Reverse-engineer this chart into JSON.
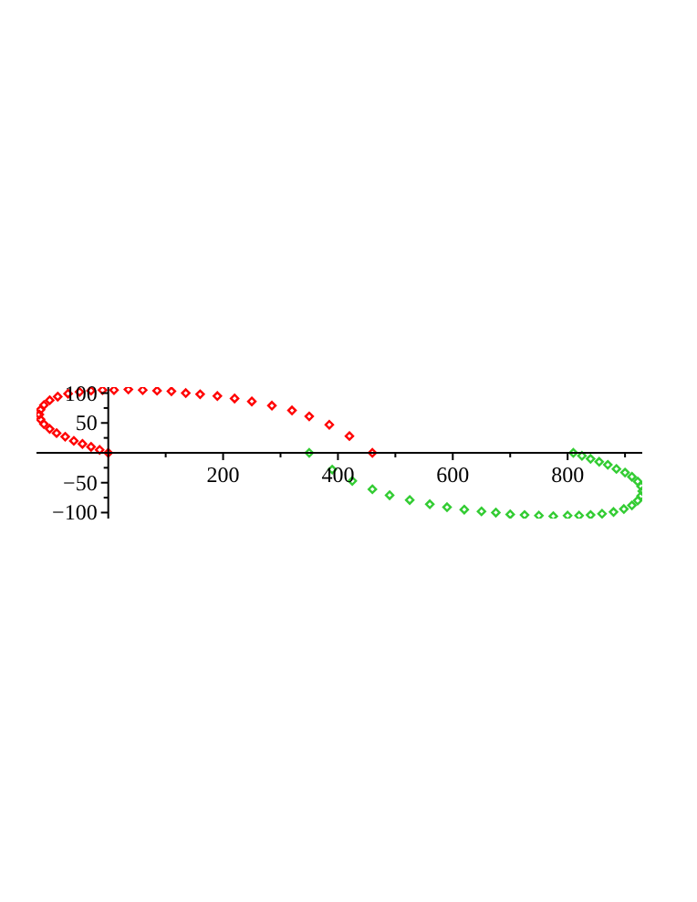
{
  "chart_data": {
    "type": "scatter",
    "marker": "diamond",
    "grid": false,
    "legend": false,
    "xlim": [
      -125,
      930
    ],
    "ylim": [
      -110,
      110
    ],
    "xticks": [
      {
        "value": 100,
        "label": null
      },
      200,
      {
        "value": 300,
        "label": null
      },
      400,
      {
        "value": 500,
        "label": null
      },
      600,
      {
        "value": 700,
        "label": null
      },
      800,
      {
        "value": 900,
        "label": null
      }
    ],
    "yticks": [
      -100,
      {
        "value": -75,
        "label": null
      },
      -50,
      {
        "value": -25,
        "label": null
      },
      {
        "value": 25,
        "label": null
      },
      50,
      {
        "value": 75,
        "label": null
      },
      100
    ],
    "series": [
      {
        "color": "#ff0000",
        "x": [
          0,
          -15,
          -30,
          -45,
          -60,
          -75,
          -90,
          -102,
          -112,
          -118,
          -120,
          -118,
          -112,
          -102,
          -88,
          -70,
          -50,
          -30,
          -10,
          10,
          35,
          60,
          85,
          110,
          135,
          160,
          190,
          220,
          250,
          285,
          320,
          350,
          385,
          420,
          460
        ],
        "values": [
          0,
          5,
          10,
          15,
          20,
          27,
          33,
          40,
          48,
          56,
          64,
          72,
          80,
          88,
          94,
          99,
          102,
          104,
          105,
          105,
          106,
          105,
          104,
          103,
          100,
          98,
          95,
          91,
          86,
          79,
          71,
          61,
          47,
          28,
          0
        ]
      },
      {
        "color": "#33cc33",
        "x": [
          810,
          825,
          840,
          855,
          870,
          885,
          900,
          912,
          922,
          928,
          930,
          928,
          922,
          912,
          898,
          880,
          860,
          840,
          820,
          800,
          775,
          750,
          725,
          700,
          675,
          650,
          620,
          590,
          560,
          525,
          490,
          460,
          425,
          390,
          350
        ],
        "values": [
          0,
          -5,
          -10,
          -15,
          -20,
          -27,
          -33,
          -40,
          -48,
          -56,
          -64,
          -72,
          -80,
          -88,
          -94,
          -99,
          -102,
          -104,
          -105,
          -105,
          -106,
          -105,
          -104,
          -103,
          -100,
          -98,
          -95,
          -91,
          -86,
          -79,
          -71,
          -61,
          -47,
          -28,
          0
        ]
      }
    ]
  }
}
